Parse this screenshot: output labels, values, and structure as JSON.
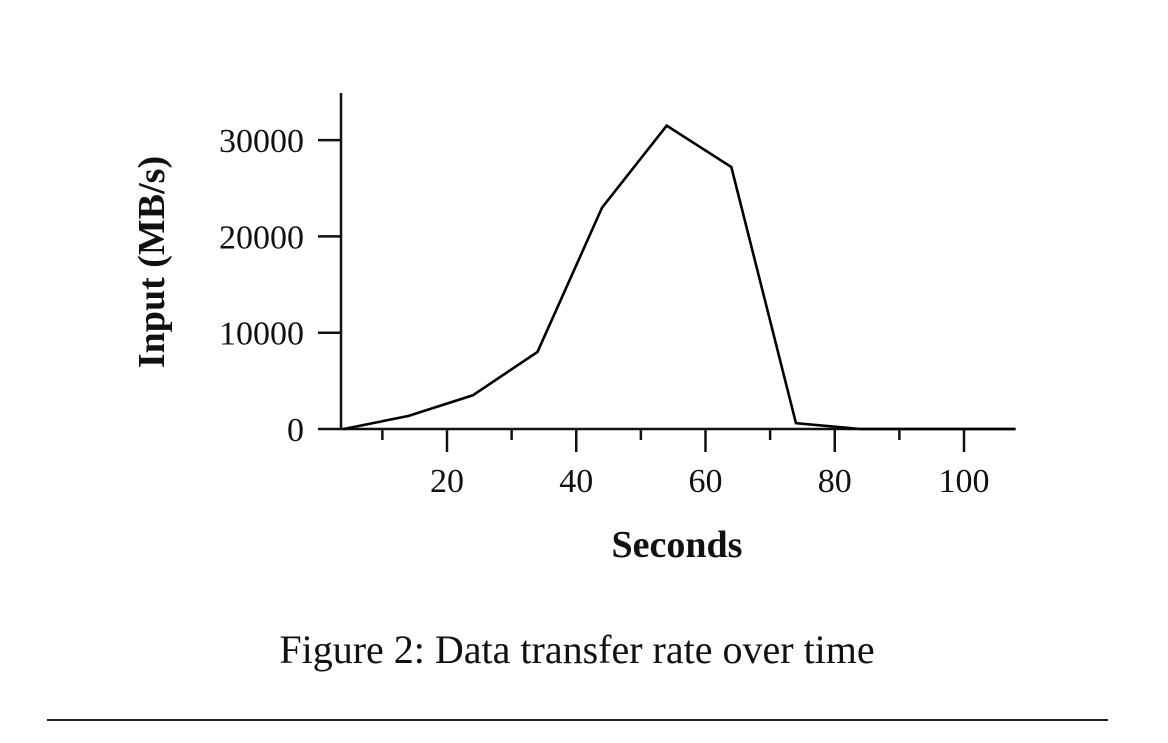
{
  "chart_data": {
    "type": "line",
    "title": "",
    "caption": "Figure 2: Data transfer rate over time",
    "xlabel": "Seconds",
    "ylabel": "Input (MB/s)",
    "x": [
      4,
      14,
      24,
      34,
      44,
      54,
      64,
      74,
      84,
      108
    ],
    "series": [
      {
        "name": "Input",
        "values": [
          0,
          1350,
          3500,
          8000,
          23000,
          31500,
          27200,
          600,
          0,
          0
        ]
      }
    ],
    "xlim": [
      4,
      108
    ],
    "ylim": [
      0,
      35000
    ],
    "xticks_major": [
      20,
      40,
      60,
      80,
      100
    ],
    "xticks_minor": [
      10,
      30,
      50,
      70,
      90
    ],
    "xtick_labels": [
      "20",
      "40",
      "60",
      "80",
      "100"
    ],
    "yticks": [
      0,
      10000,
      20000,
      30000
    ],
    "ytick_labels": [
      "0",
      "10000",
      "20000",
      "30000"
    ],
    "grid": false,
    "legend": "none",
    "line_color": "#000000"
  }
}
